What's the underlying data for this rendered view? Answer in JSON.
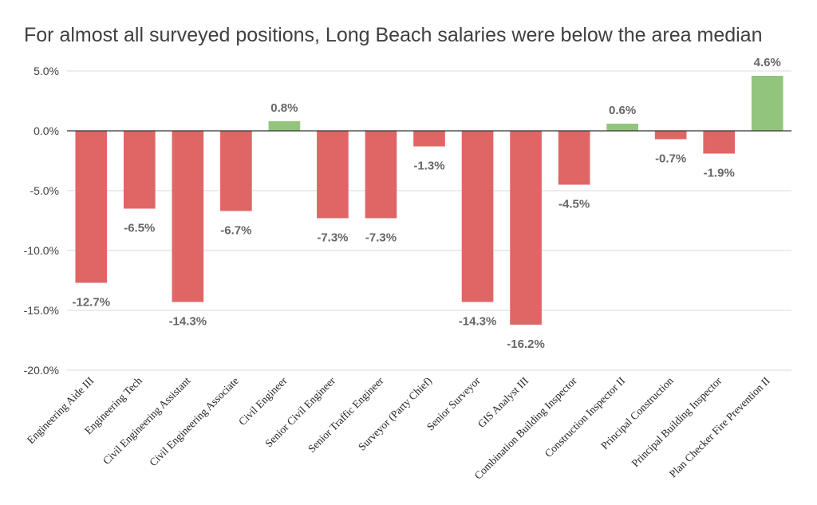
{
  "chart_data": {
    "type": "bar",
    "title": "For almost all surveyed positions, Long Beach salaries were below the area median",
    "xlabel": "",
    "ylabel": "",
    "ylim": [
      -20,
      5
    ],
    "yticks": [
      5,
      0,
      -5,
      -10,
      -15,
      -20
    ],
    "ytick_labels": [
      "5.0%",
      "0.0%",
      "-5.0%",
      "-10.0%",
      "-15.0%",
      "-20.0%"
    ],
    "grid": true,
    "legend": "none",
    "categories": [
      "Engineering Aide III",
      "Engineering Tech",
      "Civil Engineering Assistant",
      "Civil Engineering Associate",
      "Civil Engineer",
      "Senior Civil Engineer",
      "Senior Traffic Engineer",
      "Surveyor (Party Chief)",
      "Senior Surveyor",
      "GIS Analyst III",
      "Combination Building Inspector",
      "Construction Inspector II",
      "Principal Construction",
      "Principal Building Inspector",
      "Plan Checker Fire Prevention II"
    ],
    "values": [
      -12.7,
      -6.5,
      -14.3,
      -6.7,
      0.8,
      -7.3,
      -7.3,
      -1.3,
      -14.3,
      -16.2,
      -4.5,
      0.6,
      -0.7,
      -1.9,
      4.6
    ],
    "value_labels": [
      "-12.7%",
      "-6.5%",
      "-14.3%",
      "-6.7%",
      "0.8%",
      "-7.3%",
      "-7.3%",
      "-1.3%",
      "-14.3%",
      "-16.2%",
      "-4.5%",
      "0.6%",
      "-0.7%",
      "-1.9%",
      "4.6%"
    ],
    "colors": {
      "negative": "#E06666",
      "positive": "#93C47D",
      "grid": "#D9D9D9",
      "zero_line": "#333333"
    }
  }
}
